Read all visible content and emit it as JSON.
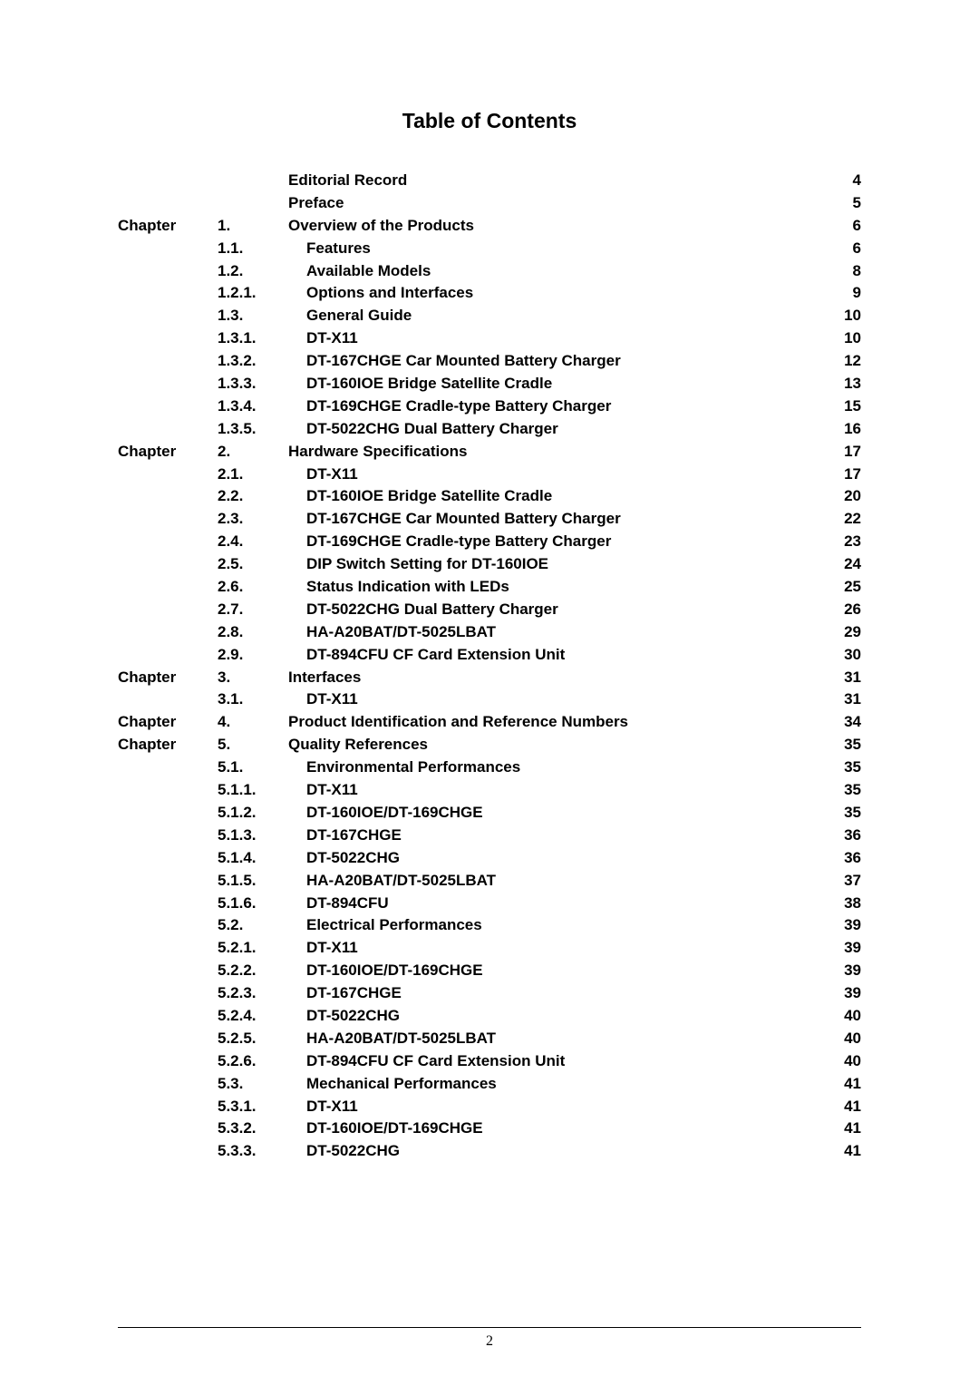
{
  "title": "Table of Contents",
  "page_number": "2",
  "entries": [
    {
      "chapter": "",
      "num": "",
      "title": "Editorial Record",
      "page": "4"
    },
    {
      "chapter": "",
      "num": "",
      "title": "Preface",
      "page": "5"
    },
    {
      "chapter": "Chapter",
      "num": "1.",
      "title": "Overview of the Products",
      "page": "6"
    },
    {
      "chapter": "",
      "num": "1.1.",
      "title": "Features",
      "page": "6",
      "indent": true
    },
    {
      "chapter": "",
      "num": "1.2.",
      "title": "Available Models",
      "page": "8",
      "indent": true
    },
    {
      "chapter": "",
      "num": "1.2.1.",
      "title": "Options and Interfaces",
      "page": "9",
      "indent": true
    },
    {
      "chapter": "",
      "num": "1.3.",
      "title": "General Guide",
      "page": "10",
      "indent": true
    },
    {
      "chapter": "",
      "num": "1.3.1.",
      "title": "DT-X11",
      "page": "10",
      "indent": true
    },
    {
      "chapter": "",
      "num": "1.3.2.",
      "title": "DT-167CHGE Car Mounted Battery Charger",
      "page": "12",
      "indent": true
    },
    {
      "chapter": "",
      "num": "1.3.3.",
      "title": "DT-160IOE Bridge Satellite Cradle",
      "page": "13",
      "indent": true
    },
    {
      "chapter": "",
      "num": "1.3.4.",
      "title": "DT-169CHGE Cradle-type Battery Charger",
      "page": "15",
      "indent": true
    },
    {
      "chapter": "",
      "num": "1.3.5.",
      "title": "DT-5022CHG Dual Battery Charger",
      "page": "16",
      "indent": true
    },
    {
      "chapter": "Chapter",
      "num": "2.",
      "title": "Hardware Specifications",
      "page": "17"
    },
    {
      "chapter": "",
      "num": "2.1.",
      "title": "DT-X11",
      "page": "17",
      "indent": true
    },
    {
      "chapter": "",
      "num": "2.2.",
      "title": "DT-160IOE Bridge Satellite Cradle",
      "page": "20",
      "indent": true
    },
    {
      "chapter": "",
      "num": "2.3.",
      "title": "DT-167CHGE Car Mounted Battery Charger",
      "page": "22",
      "indent": true
    },
    {
      "chapter": "",
      "num": "2.4.",
      "title": "DT-169CHGE Cradle-type Battery Charger",
      "page": "23",
      "indent": true
    },
    {
      "chapter": "",
      "num": "2.5.",
      "title": "DIP Switch Setting for DT-160IOE",
      "page": "24",
      "indent": true
    },
    {
      "chapter": "",
      "num": "2.6.",
      "title": "Status Indication with LEDs",
      "page": "25",
      "indent": true
    },
    {
      "chapter": "",
      "num": "2.7.",
      "title": "DT-5022CHG Dual Battery Charger",
      "page": "26",
      "indent": true
    },
    {
      "chapter": "",
      "num": "2.8.",
      "title": "HA-A20BAT/DT-5025LBAT",
      "page": "29",
      "indent": true
    },
    {
      "chapter": "",
      "num": "2.9.",
      "title": "DT-894CFU CF Card Extension Unit",
      "page": "30",
      "indent": true
    },
    {
      "chapter": "Chapter",
      "num": "3.",
      "title": "Interfaces",
      "page": "31"
    },
    {
      "chapter": "",
      "num": "3.1.",
      "title": "DT-X11",
      "page": "31",
      "indent": true
    },
    {
      "chapter": "Chapter",
      "num": "4.",
      "title": "Product Identification and Reference Numbers",
      "page": "34"
    },
    {
      "chapter": "Chapter",
      "num": "5.",
      "title": "Quality References",
      "page": "35"
    },
    {
      "chapter": "",
      "num": "5.1.",
      "title": "Environmental Performances",
      "page": "35",
      "indent": true
    },
    {
      "chapter": "",
      "num": "5.1.1.",
      "title": "DT-X11",
      "page": "35",
      "indent": true
    },
    {
      "chapter": "",
      "num": "5.1.2.",
      "title": "DT-160IOE/DT-169CHGE",
      "page": "35",
      "indent": true
    },
    {
      "chapter": "",
      "num": "5.1.3.",
      "title": "DT-167CHGE",
      "page": "36",
      "indent": true
    },
    {
      "chapter": "",
      "num": "5.1.4.",
      "title": "DT-5022CHG",
      "page": "36",
      "indent": true
    },
    {
      "chapter": "",
      "num": "5.1.5.",
      "title": "HA-A20BAT/DT-5025LBAT",
      "page": "37",
      "indent": true
    },
    {
      "chapter": "",
      "num": "5.1.6.",
      "title": "DT-894CFU",
      "page": "38",
      "indent": true
    },
    {
      "chapter": "",
      "num": "5.2.",
      "title": "Electrical Performances",
      "page": "39",
      "indent": true
    },
    {
      "chapter": "",
      "num": "5.2.1.",
      "title": "DT-X11",
      "page": "39",
      "indent": true
    },
    {
      "chapter": "",
      "num": "5.2.2.",
      "title": "DT-160IOE/DT-169CHGE",
      "page": "39",
      "indent": true
    },
    {
      "chapter": "",
      "num": "5.2.3.",
      "title": "DT-167CHGE",
      "page": "39",
      "indent": true
    },
    {
      "chapter": "",
      "num": "5.2.4.",
      "title": "DT-5022CHG",
      "page": "40",
      "indent": true
    },
    {
      "chapter": "",
      "num": "5.2.5.",
      "title": "HA-A20BAT/DT-5025LBAT",
      "page": "40",
      "indent": true
    },
    {
      "chapter": "",
      "num": "5.2.6.",
      "title": "DT-894CFU CF Card Extension Unit",
      "page": "40",
      "indent": true
    },
    {
      "chapter": "",
      "num": "5.3.",
      "title": "Mechanical Performances",
      "page": "41",
      "indent": true
    },
    {
      "chapter": "",
      "num": "5.3.1.",
      "title": "DT-X11",
      "page": "41",
      "indent": true
    },
    {
      "chapter": "",
      "num": "5.3.2.",
      "title": "DT-160IOE/DT-169CHGE",
      "page": "41",
      "indent": true
    },
    {
      "chapter": "",
      "num": "5.3.3.",
      "title": "DT-5022CHG",
      "page": "41",
      "indent": true
    }
  ]
}
